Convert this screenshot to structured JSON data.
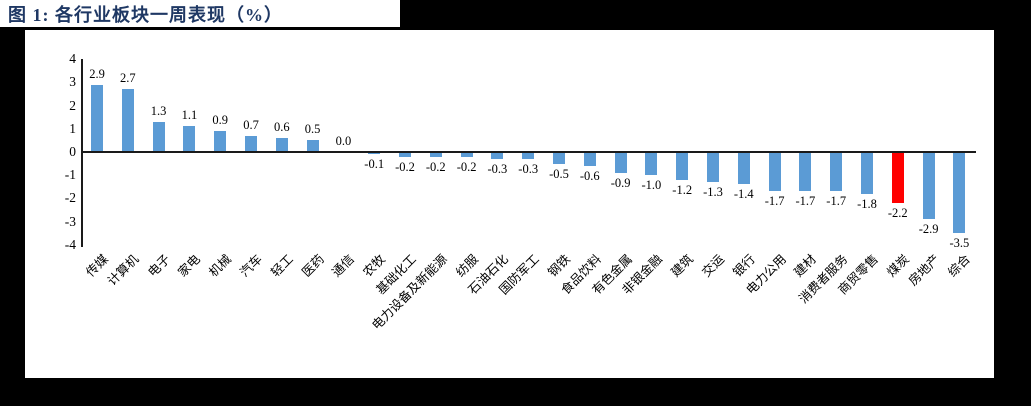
{
  "title": "图 1: 各行业板块一周表现（%）",
  "colors": {
    "background": "#000000",
    "panel": "#FFFFFF",
    "title_navy": "#1F3864",
    "bar_blue": "#5B9BD5",
    "bar_red": "#FF0000",
    "axis": "#1A1A1A",
    "label_text": "#000000"
  },
  "chart_data": {
    "type": "bar",
    "title": "图 1: 各行业板块一周表现（%）",
    "xlabel": "",
    "ylabel": "",
    "ylim": [
      -4,
      4
    ],
    "yticks": [
      4,
      3,
      2,
      1,
      0,
      -1,
      -2,
      -3,
      -4
    ],
    "grid": false,
    "legend": false,
    "value_labels_decimals": 1,
    "category_label_rotation_deg": 45,
    "highlight": {
      "category": "煤炭",
      "color": "#FF0000"
    },
    "categories": [
      "传媒",
      "计算机",
      "电子",
      "家电",
      "机械",
      "汽车",
      "轻工",
      "医药",
      "通信",
      "农牧",
      "基础化工",
      "电力设备及新能源",
      "纺服",
      "石油石化",
      "国防军工",
      "钢铁",
      "食品饮料",
      "有色金属",
      "非银金融",
      "建筑",
      "交运",
      "银行",
      "电力公用",
      "建材",
      "消费者服务",
      "商贸零售",
      "煤炭",
      "房地产",
      "综合"
    ],
    "values": [
      2.9,
      2.7,
      1.3,
      1.1,
      0.9,
      0.7,
      0.6,
      0.5,
      0.0,
      -0.1,
      -0.2,
      -0.2,
      -0.2,
      -0.3,
      -0.3,
      -0.5,
      -0.6,
      -0.9,
      -1.0,
      -1.2,
      -1.3,
      -1.4,
      -1.7,
      -1.7,
      -1.7,
      -1.8,
      -2.2,
      -2.9,
      -3.5
    ]
  }
}
